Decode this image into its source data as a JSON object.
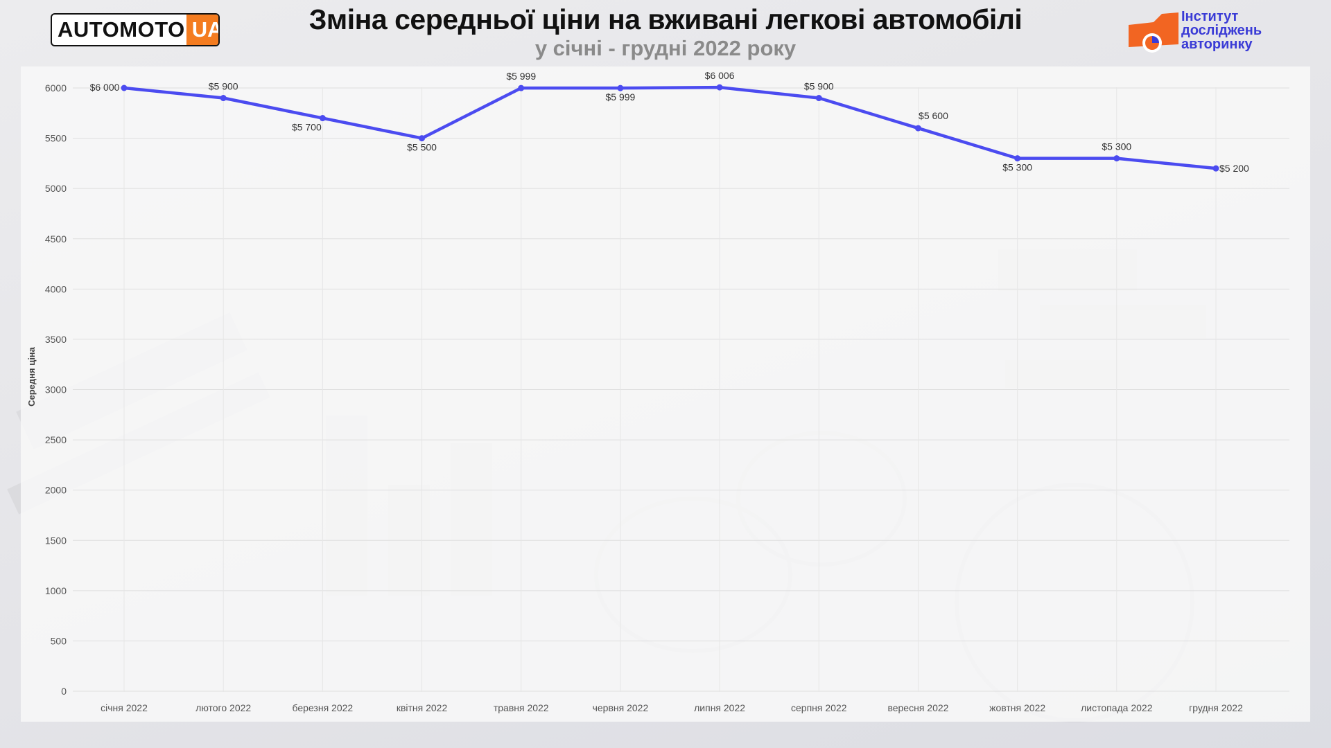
{
  "header": {
    "title": "Зміна середньої ціни на вживані легкові автомобілі",
    "subtitle": "у січні - грудні 2022 року"
  },
  "logos": {
    "automoto": {
      "text": "AUTOMOTO",
      "badge": "UA"
    },
    "institute": {
      "line1": "Інститут",
      "line2": "досліджень",
      "line3": "авторинку"
    }
  },
  "colors": {
    "line": "#4b4bf0",
    "automoto_badge": "#f47c20",
    "institute_text": "#3a3bd6",
    "institute_icon": "#f26522"
  },
  "chart_data": {
    "type": "line",
    "ylabel": "Середня ціна",
    "xlabel": "",
    "ylim": [
      0,
      6000
    ],
    "yticks": [
      0,
      500,
      1000,
      1500,
      2000,
      2500,
      3000,
      3500,
      4000,
      4500,
      5000,
      5500,
      6000
    ],
    "grid": true,
    "categories": [
      "січня 2022",
      "лютого 2022",
      "березня 2022",
      "квітня 2022",
      "травня 2022",
      "червня 2022",
      "липня 2022",
      "серпня 2022",
      "вересня 2022",
      "жовтня 2022",
      "листопада 2022",
      "грудня 2022"
    ],
    "series": [
      {
        "values": [
          6000,
          5900,
          5700,
          5500,
          5999,
          5999,
          6006,
          5900,
          5600,
          5300,
          5300,
          5200
        ],
        "labels": [
          "$6 000",
          "$5 900",
          "$5 700",
          "$5 500",
          "$5 999",
          "$5 999",
          "$6 006",
          "$5 900",
          "$5 600",
          "$5 300",
          "$5 300",
          "$5 200"
        ]
      }
    ]
  }
}
